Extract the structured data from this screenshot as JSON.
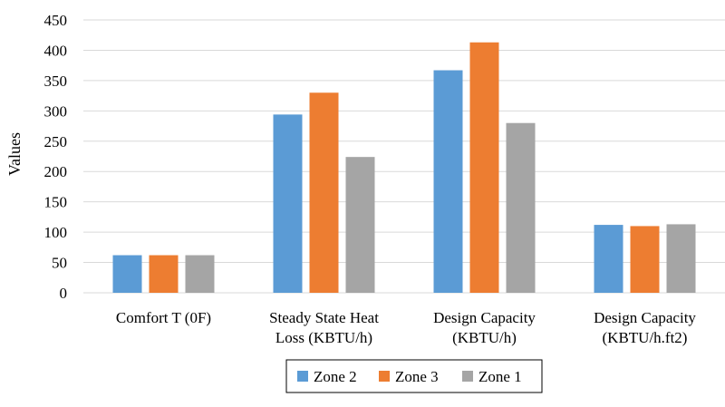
{
  "chart_data": {
    "type": "bar",
    "title": "",
    "xlabel": "",
    "ylabel": "Values",
    "ylim": [
      0,
      450
    ],
    "yticks": [
      0,
      50,
      100,
      150,
      200,
      250,
      300,
      350,
      400,
      450
    ],
    "grid": true,
    "legend_position": "bottom",
    "categories": [
      [
        "Comfort T (0F)"
      ],
      [
        "Steady State Heat",
        "Loss (KBTU/h)"
      ],
      [
        "Design Capacity",
        "(KBTU/h)"
      ],
      [
        "Design Capacity",
        "(KBTU/h.ft2)"
      ]
    ],
    "series": [
      {
        "name": "Zone 2",
        "color": "#5B9BD5",
        "values": [
          62,
          294,
          367,
          112
        ]
      },
      {
        "name": "Zone 3",
        "color": "#ED7D31",
        "values": [
          62,
          330,
          413,
          110
        ]
      },
      {
        "name": "Zone 1",
        "color": "#A5A5A5",
        "values": [
          62,
          224,
          280,
          113
        ]
      }
    ]
  }
}
